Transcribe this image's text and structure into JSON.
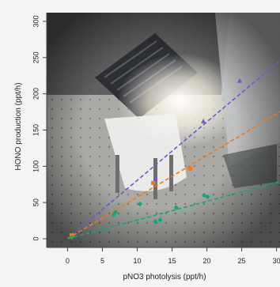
{
  "chart_data": {
    "type": "scatter",
    "xlabel": "pNO3 photolysis (ppt/h)",
    "ylabel": "HONO production (ppt/h)",
    "xlim": [
      -3,
      30.5
    ],
    "ylim": [
      -12,
      312
    ],
    "x_ticks": [
      0,
      5,
      10,
      15,
      20,
      25,
      30
    ],
    "x_tick_labels": [
      "0",
      "5",
      "10",
      "15",
      "20",
      "25",
      "30"
    ],
    "y_ticks": [
      0,
      50,
      100,
      150,
      200,
      250,
      300
    ],
    "y_tick_labels": [
      "0",
      "50",
      "100",
      "150",
      "200",
      "250",
      "300"
    ],
    "background": "photograph of lamp-and-reactor apparatus on an optical breadboard",
    "grid": false,
    "legend": "none",
    "series": [
      {
        "color": "#6a5acd",
        "marker": "triangle",
        "points": [
          [
            12.6,
            84
          ],
          [
            19.5,
            162
          ],
          [
            24.7,
            218
          ]
        ],
        "fit": {
          "x0": 0,
          "y0": 0,
          "x1": 31,
          "y1": 250
        }
      },
      {
        "color": "#f07a1a",
        "marker": "square",
        "points": [
          [
            0.6,
            5
          ],
          [
            12.3,
            77
          ],
          [
            17.6,
            97
          ]
        ],
        "fit": {
          "x0": 0,
          "y0": 0,
          "x1": 31,
          "y1": 178
        }
      },
      {
        "color": "#12a57a",
        "marker": "diamond",
        "points": [
          [
            0.6,
            2
          ],
          [
            6.6,
            33
          ],
          [
            6.9,
            37
          ],
          [
            10.4,
            48
          ],
          [
            12.6,
            24
          ],
          [
            13.3,
            26
          ],
          [
            15.6,
            43
          ],
          [
            19.6,
            60
          ],
          [
            20.1,
            58
          ]
        ],
        "fit": {
          "x0": 0,
          "y0": 0,
          "x1": 31,
          "y1": 80
        }
      }
    ]
  }
}
